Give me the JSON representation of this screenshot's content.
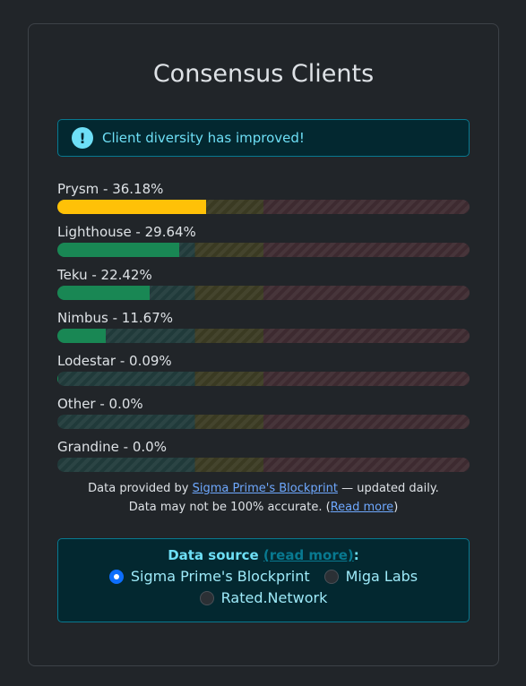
{
  "title": "Consensus Clients",
  "alert": {
    "icon": "info-icon",
    "glyph": "!",
    "text": "Client diversity has improved!"
  },
  "clients": [
    {
      "label": "Prysm - 36.18%",
      "share": 0.3618,
      "color": "#ffc107"
    },
    {
      "label": "Lighthouse - 29.64%",
      "share": 0.2964,
      "color": "#198754"
    },
    {
      "label": "Teku - 22.42%",
      "share": 0.2242,
      "color": "#198754"
    },
    {
      "label": "Nimbus - 11.67%",
      "share": 0.1167,
      "color": "#198754"
    },
    {
      "label": "Lodestar - 0.09%",
      "share": 0.0009,
      "color": "#198754"
    },
    {
      "label": "Other - 0.0%",
      "share": 0.0,
      "color": "#198754"
    },
    {
      "label": "Grandine - 0.0%",
      "share": 0.0,
      "color": "#198754"
    }
  ],
  "footnote": {
    "prefix": "Data provided by ",
    "link": "Sigma Prime's Blockprint",
    "suffix": " — updated daily.",
    "line2_prefix": "Data may not be 100% accurate. (",
    "line2_link": "Read more",
    "line2_suffix": ")"
  },
  "source": {
    "label": "Data source",
    "read_more": "(read more)",
    "colon": ":",
    "options": [
      {
        "label": "Sigma Prime's Blockprint",
        "selected": true
      },
      {
        "label": "Miga Labs",
        "selected": false
      },
      {
        "label": "Rated.Network",
        "selected": false
      }
    ]
  }
}
